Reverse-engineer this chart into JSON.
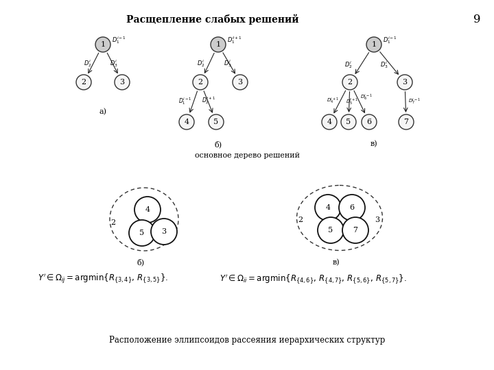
{
  "title": "Расщепление слабых решений",
  "page_num": "9",
  "subtitle_bottom": "основное дерево решений",
  "footer_text": "Расположение эллипсоидов рассеяния иерархических структур",
  "label_a": "а)",
  "label_b": "б)",
  "label_v": "в)",
  "label_b2": "б)",
  "label_v2": "в)",
  "bg_color": "#ffffff",
  "text_color": "#000000"
}
